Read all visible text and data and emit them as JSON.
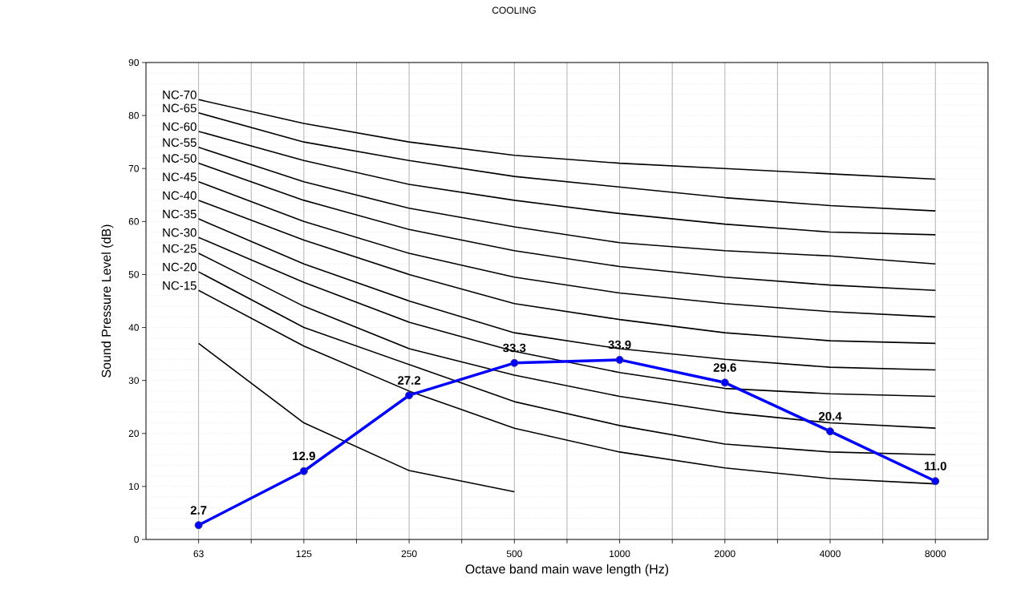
{
  "chart_data": {
    "type": "line",
    "title": "COOLING",
    "xlabel": "Octave band main wave length (Hz)",
    "ylabel": "Sound Pressure  Level (dB)",
    "categories": [
      "63",
      "125",
      "250",
      "500",
      "1000",
      "2000",
      "4000",
      "8000"
    ],
    "ylim": [
      0,
      90
    ],
    "yticks": [
      0,
      10,
      20,
      30,
      40,
      50,
      60,
      70,
      80,
      90
    ],
    "grid": true,
    "legend": "left",
    "series": [
      {
        "name": "NC-70",
        "color": "#000000",
        "values": [
          83,
          78.5,
          75,
          72.5,
          71,
          70,
          69,
          68
        ]
      },
      {
        "name": "NC-65",
        "color": "#000000",
        "values": [
          80.5,
          75,
          71.5,
          68.5,
          66.5,
          64.5,
          63,
          62
        ]
      },
      {
        "name": "NC-60",
        "color": "#000000",
        "values": [
          77,
          71.5,
          67,
          64,
          61.5,
          59.5,
          58,
          57.5
        ]
      },
      {
        "name": "NC-55",
        "color": "#000000",
        "values": [
          74,
          67.5,
          62.5,
          59,
          56,
          54.5,
          53.5,
          52
        ]
      },
      {
        "name": "NC-50",
        "color": "#000000",
        "values": [
          71,
          64,
          58.5,
          54.5,
          51.5,
          49.5,
          48,
          47
        ]
      },
      {
        "name": "NC-45",
        "color": "#000000",
        "values": [
          67.5,
          60,
          54,
          49.5,
          46.5,
          44.5,
          43,
          42
        ]
      },
      {
        "name": "NC-40",
        "color": "#000000",
        "values": [
          64,
          56.5,
          50,
          44.5,
          41.5,
          39,
          37.5,
          37
        ]
      },
      {
        "name": "NC-35",
        "color": "#000000",
        "values": [
          60.5,
          52,
          45,
          39,
          36,
          34,
          32.5,
          32
        ]
      },
      {
        "name": "NC-30",
        "color": "#000000",
        "values": [
          57,
          48.5,
          41,
          35.5,
          31.5,
          28.5,
          27.5,
          27
        ]
      },
      {
        "name": "NC-25",
        "color": "#000000",
        "values": [
          54,
          44,
          36,
          31,
          27,
          24,
          22,
          21
        ]
      },
      {
        "name": "NC-20",
        "color": "#000000",
        "values": [
          50.5,
          40,
          33,
          26,
          21.5,
          18,
          16.5,
          16
        ]
      },
      {
        "name": "NC-15",
        "color": "#000000",
        "values": [
          47,
          36.5,
          28,
          21,
          16.5,
          13.5,
          11.5,
          10.5
        ]
      },
      {
        "color": "#000000",
        "values": [
          37,
          22,
          13,
          9,
          null,
          null,
          null,
          null
        ]
      },
      {
        "color": "#0000ff",
        "marker": "circle",
        "values": [
          2.7,
          12.9,
          27.2,
          33.3,
          33.9,
          29.6,
          20.4,
          11.0
        ],
        "value_labels": [
          "2.7",
          "12.9",
          "27.2",
          "33.3",
          "33.9",
          "29.6",
          "20.4",
          "11.0"
        ]
      }
    ]
  }
}
